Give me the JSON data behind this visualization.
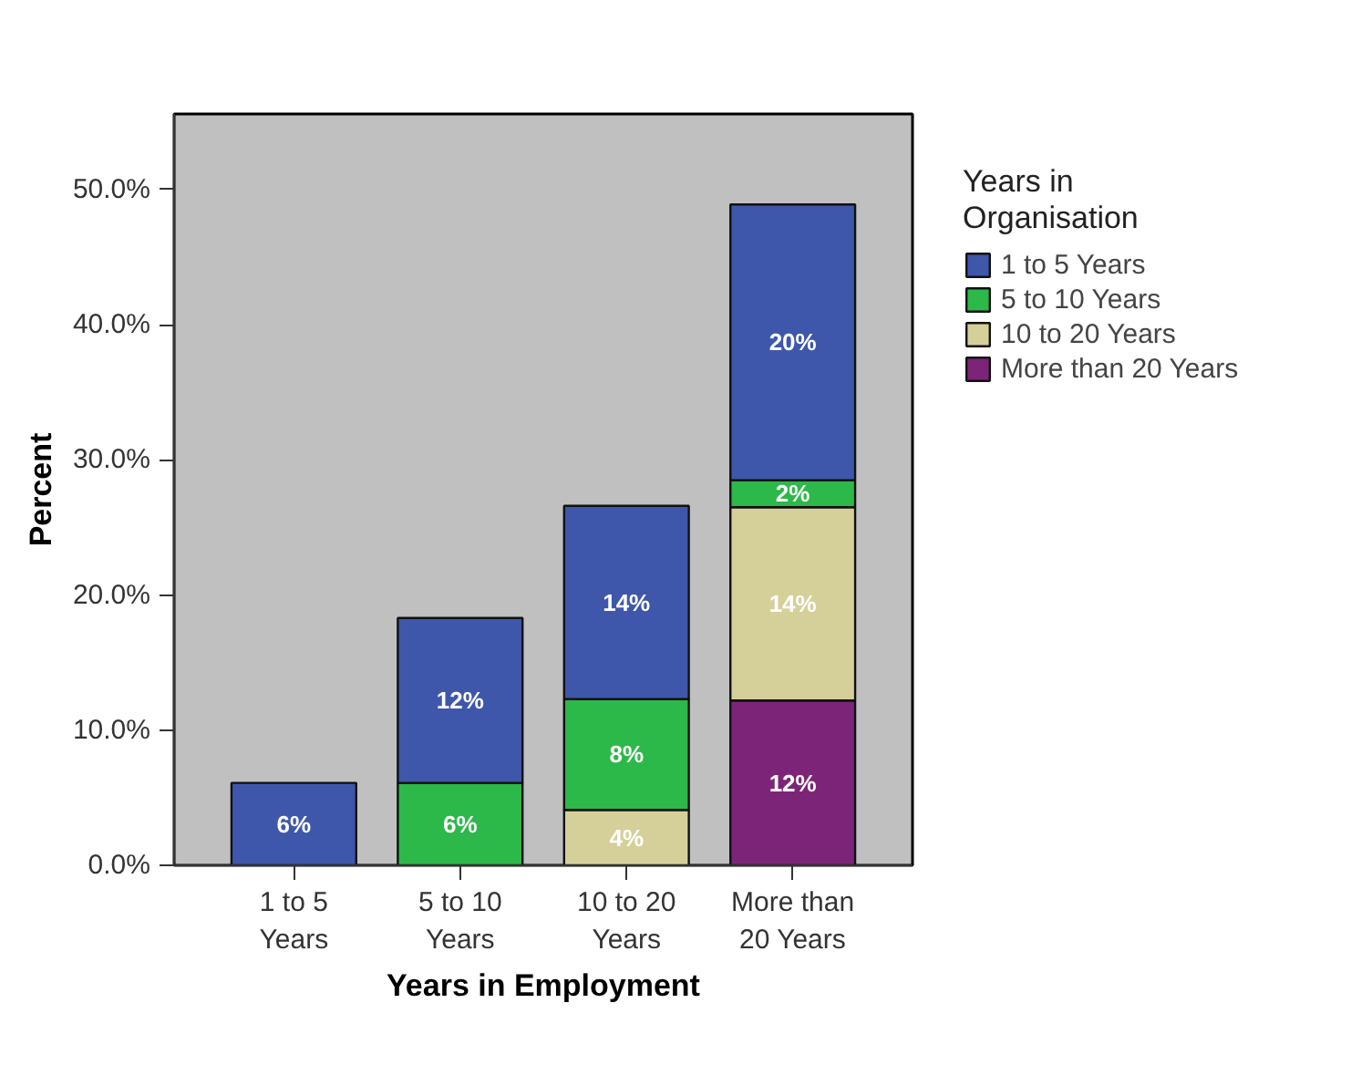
{
  "chart_data": {
    "type": "bar",
    "stacked": true,
    "xlabel": "Years in Employment",
    "ylabel": "Percent",
    "legend_title": "Years in Organisation",
    "legend": "top right",
    "grid": false,
    "categories": [
      "1 to 5 Years",
      "5 to 10 Years",
      "10 to 20 Years",
      "More than 20 Years"
    ],
    "ylim": [
      0,
      55.6
    ],
    "yticks": [
      {
        "value": 0,
        "label": "0.0%"
      },
      {
        "value": 10,
        "label": "10.0%"
      },
      {
        "value": 20,
        "label": "20.0%"
      },
      {
        "value": 30,
        "label": "30.0%"
      },
      {
        "value": 40,
        "label": "40.0%"
      },
      {
        "value": 50,
        "label": "50.0%"
      }
    ],
    "series": [
      {
        "name": "More than 20 Years",
        "color": "#7c2578",
        "values": [
          null,
          null,
          null,
          12.2
        ],
        "value_labels": [
          null,
          null,
          null,
          "12%"
        ]
      },
      {
        "name": "10 to 20 Years",
        "color": "#d5d09a",
        "values": [
          null,
          null,
          4.1,
          14.3
        ],
        "value_labels": [
          null,
          null,
          "4%",
          "14%"
        ]
      },
      {
        "name": "5 to 10 Years",
        "color": "#2db84a",
        "values": [
          null,
          6.1,
          8.2,
          2.0
        ],
        "value_labels": [
          null,
          "6%",
          "8%",
          "2%"
        ]
      },
      {
        "name": "1 to 5 Years",
        "color": "#3e57aa",
        "values": [
          6.1,
          12.2,
          14.3,
          20.4
        ],
        "value_labels": [
          "6%",
          "12%",
          "14%",
          "20%"
        ]
      }
    ]
  }
}
